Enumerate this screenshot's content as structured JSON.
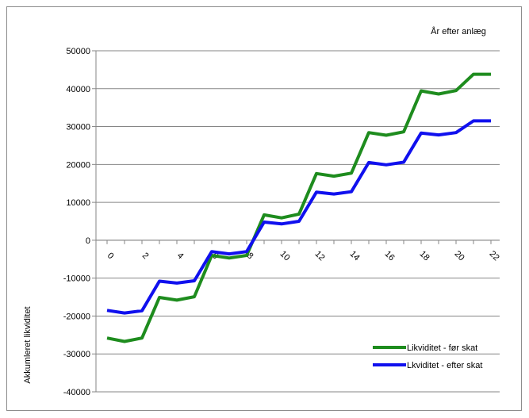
{
  "chart_data": {
    "type": "line",
    "title": "",
    "xlabel": "År efter anlæg",
    "ylabel": "Akkumleret likviditet",
    "x": [
      0,
      1,
      2,
      3,
      4,
      5,
      6,
      7,
      8,
      9,
      10,
      11,
      12,
      13,
      14,
      15,
      16,
      17,
      18,
      19,
      20,
      21,
      22
    ],
    "x_tick_labels": [
      "0",
      "2",
      "4",
      "6",
      "8",
      "10",
      "12",
      "14",
      "16",
      "18",
      "20",
      "22"
    ],
    "x_tick_values": [
      0,
      2,
      4,
      6,
      8,
      10,
      12,
      14,
      16,
      18,
      20,
      22
    ],
    "ylim": [
      -40000,
      50000
    ],
    "y_ticks": [
      -40000,
      -30000,
      -20000,
      -10000,
      0,
      10000,
      20000,
      30000,
      40000,
      50000
    ],
    "y_tick_labels": [
      "-40000",
      "-30000",
      "-20000",
      "-10000",
      "0",
      "10000",
      "20000",
      "30000",
      "40000",
      "50000"
    ],
    "grid": "horizontal",
    "legend_position": "bottom-right",
    "series": [
      {
        "name": "Likviditet - før skat",
        "color": "#1e8c1e",
        "values": [
          -25800,
          -26700,
          -25800,
          -15100,
          -15800,
          -14900,
          -4000,
          -4700,
          -4000,
          6700,
          5900,
          6900,
          17600,
          16900,
          17700,
          28400,
          27700,
          28600,
          39400,
          38600,
          39500,
          43800,
          43800
        ]
      },
      {
        "name": "Lkviditet - efter skat",
        "color": "#1010ee",
        "values": [
          -18500,
          -19200,
          -18600,
          -10800,
          -11300,
          -10700,
          -3000,
          -3600,
          -3000,
          4800,
          4300,
          5000,
          12700,
          12200,
          12800,
          20500,
          19900,
          20600,
          28300,
          27800,
          28400,
          31500,
          31500
        ]
      }
    ]
  }
}
